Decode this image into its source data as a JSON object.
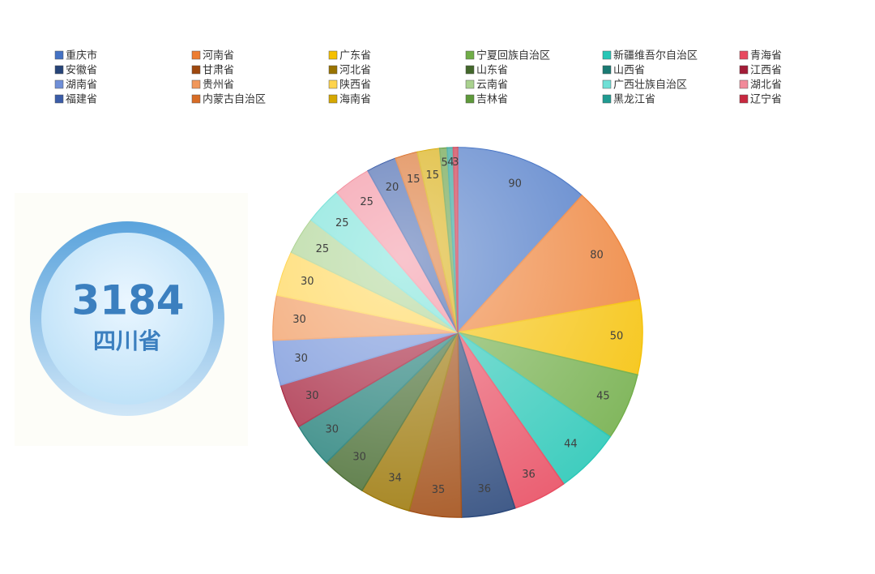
{
  "chart_data": {
    "type": "pie",
    "categories": [
      "重庆市",
      "河南省",
      "广东省",
      "宁夏回族自治区",
      "新疆维吾尔自治区",
      "青海省",
      "安徽省",
      "甘肃省",
      "河北省",
      "山东省",
      "山西省",
      "江西省",
      "湖南省",
      "贵州省",
      "陕西省",
      "云南省",
      "广西壮族自治区",
      "湖北省",
      "福建省",
      "内蒙古自治区",
      "海南省",
      "吉林省",
      "黑龙江省",
      "辽宁省"
    ],
    "values": [
      90,
      80,
      50,
      45,
      44,
      36,
      36,
      35,
      34,
      30,
      30,
      30,
      30,
      30,
      30,
      25,
      25,
      25,
      20,
      15,
      15,
      5,
      4,
      3
    ],
    "colors": [
      "#4472c4",
      "#ed7d31",
      "#f5c000",
      "#70ad47",
      "#26c6b6",
      "#e84a5f",
      "#264478",
      "#9e480e",
      "#997300",
      "#43682b",
      "#1a7a73",
      "#a31c37",
      "#6f8fd8",
      "#f1975a",
      "#ffd44d",
      "#a9d18e",
      "#6fe0d6",
      "#f28a9a",
      "#3a5ca8",
      "#d86c25",
      "#d6a800",
      "#5e9a3a",
      "#1f9b91",
      "#c8283f"
    ],
    "legend": "top"
  },
  "highlight": {
    "value": "3184",
    "label": "四川省"
  }
}
